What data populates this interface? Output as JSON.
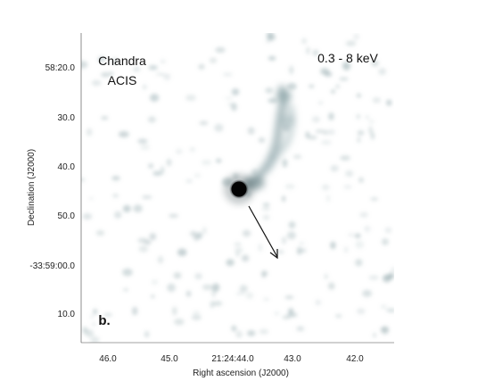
{
  "figure": {
    "instrument_line1": "Chandra",
    "instrument_line2": "ACIS",
    "energy_band": "0.3 - 8 keV",
    "panel_label": "b.",
    "xlabel": "Right ascension (J2000)",
    "ylabel": "Declination (J2000)",
    "x_ticks": [
      "46.0",
      "45.0",
      "21:24:44.0",
      "43.0",
      "42.0"
    ],
    "y_ticks": [
      "58:20.0",
      "30.0",
      "40.0",
      "50.0",
      "-33:59:00.0",
      "10.0"
    ],
    "colors": {
      "background": "#ffffff",
      "emission": "#8fa6aa",
      "source": "#050505"
    }
  }
}
